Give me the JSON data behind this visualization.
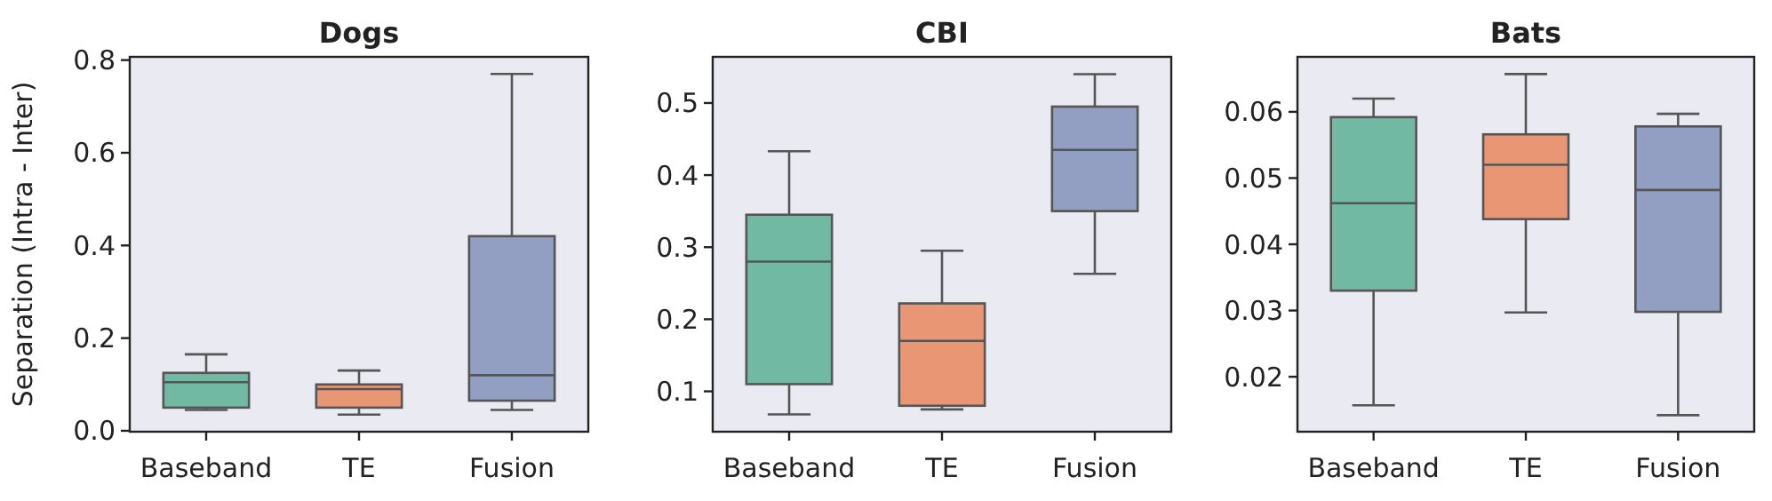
{
  "chart_data": [
    {
      "type": "box",
      "title": "Dogs",
      "ylabel": "Separation (Intra - Inter)",
      "categories": [
        "Baseband",
        "TE",
        "Fusion"
      ],
      "colors": [
        "#72b9a3",
        "#e99675",
        "#929fc2"
      ],
      "ylim": [
        -0.002,
        0.807
      ],
      "yticks": [
        {
          "value": 0,
          "label": "0.0"
        },
        0.2,
        0.4,
        0.6,
        0.8
      ],
      "grid": false,
      "boxes": [
        {
          "low": 0.045,
          "q1": 0.05,
          "median": 0.105,
          "q3": 0.125,
          "high": 0.165
        },
        {
          "low": 0.035,
          "q1": 0.05,
          "median": 0.09,
          "q3": 0.1,
          "high": 0.13
        },
        {
          "low": 0.045,
          "q1": 0.065,
          "median": 0.12,
          "q3": 0.42,
          "high": 0.77
        }
      ]
    },
    {
      "type": "box",
      "title": "CBI",
      "categories": [
        "Baseband",
        "TE",
        "Fusion"
      ],
      "colors": [
        "#72b9a3",
        "#e99675",
        "#929fc2"
      ],
      "ylim": [
        0.044,
        0.564
      ],
      "yticks": [
        0.1,
        0.2,
        0.3,
        0.4,
        0.5
      ],
      "grid": false,
      "boxes": [
        {
          "low": 0.068,
          "q1": 0.11,
          "median": 0.28,
          "q3": 0.345,
          "high": 0.433
        },
        {
          "low": 0.075,
          "q1": 0.08,
          "median": 0.17,
          "q3": 0.222,
          "high": 0.295
        },
        {
          "low": 0.263,
          "q1": 0.35,
          "median": 0.435,
          "q3": 0.495,
          "high": 0.54
        }
      ]
    },
    {
      "type": "box",
      "title": "Bats",
      "categories": [
        "Baseband",
        "TE",
        "Fusion"
      ],
      "colors": [
        "#72b9a3",
        "#e99675",
        "#929fc2"
      ],
      "ylim": [
        0.0117,
        0.0683
      ],
      "yticks": [
        0.02,
        0.03,
        0.04,
        0.05,
        0.06
      ],
      "grid": false,
      "boxes": [
        {
          "low": 0.0157,
          "q1": 0.033,
          "median": 0.0462,
          "q3": 0.0592,
          "high": 0.062
        },
        {
          "low": 0.0297,
          "q1": 0.0438,
          "median": 0.052,
          "q3": 0.0566,
          "high": 0.0657
        },
        {
          "low": 0.0142,
          "q1": 0.0298,
          "median": 0.0482,
          "q3": 0.0578,
          "high": 0.0597
        }
      ]
    }
  ]
}
